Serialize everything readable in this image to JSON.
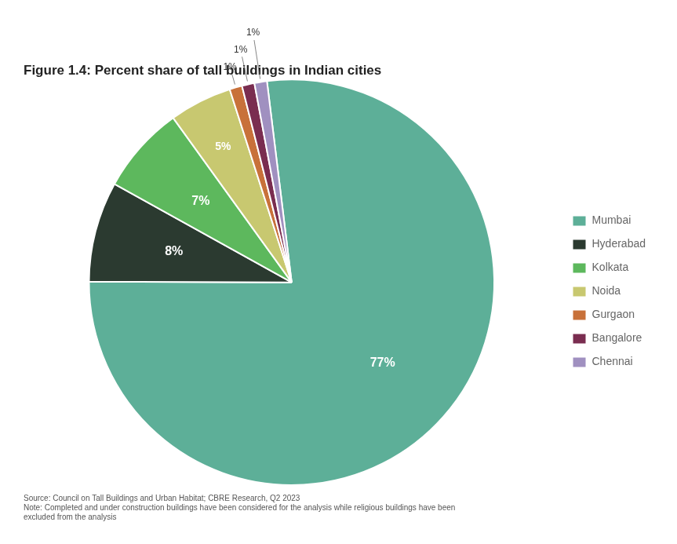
{
  "chart_data": {
    "type": "pie",
    "title": "Figure 1.4: Percent share of tall buildings in Indian cities",
    "categories": [
      "Mumbai",
      "Hyderabad",
      "Kolkata",
      "Noida",
      "Gurgaon",
      "Bangalore",
      "Chennai"
    ],
    "values": [
      77,
      8,
      7,
      5,
      1,
      1,
      1
    ],
    "value_labels": [
      "77%",
      "8%",
      "7%",
      "5%",
      "1%",
      "1%",
      "1%"
    ],
    "colors": [
      "#5daf98",
      "#2b3a30",
      "#5db85d",
      "#c8c870",
      "#c8713a",
      "#7a2d50",
      "#a090c0"
    ],
    "data_labels": true,
    "legend": "right",
    "annotations": [
      "Source: Council on Tall Buildings and Urban Habitat; CBRE Research, Q2 2023",
      "Note: Completed and under construction buildings have been considered for the analysis while religious buildings have been\nexcluded from the analysis"
    ]
  }
}
